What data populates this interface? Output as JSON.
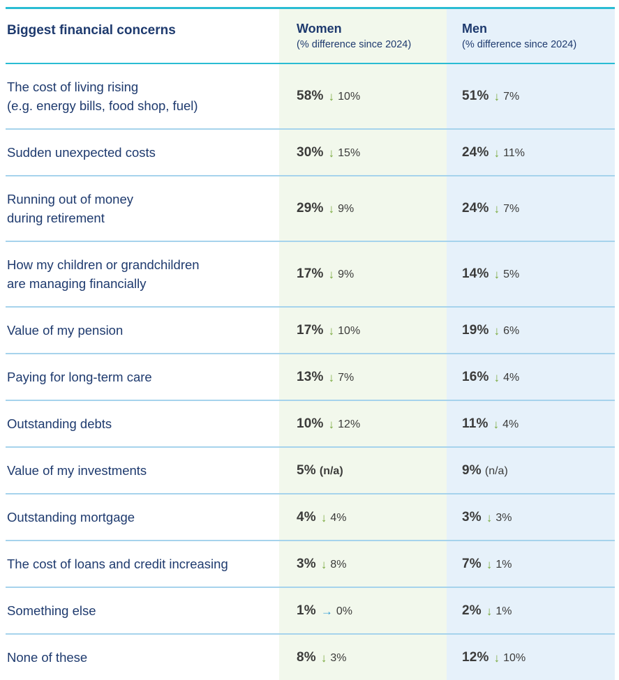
{
  "table": {
    "title": "Biggest financial concerns",
    "columns": {
      "women": {
        "name": "Women",
        "subtitle": "(% difference since 2024)"
      },
      "men": {
        "name": "Men",
        "subtitle": "(% difference since 2024)"
      }
    },
    "rows": [
      {
        "label": "The cost of living rising\n(e.g. energy bills, food shop, fuel)",
        "women": {
          "value": "58%",
          "arrow": "down",
          "diff": "10%"
        },
        "men": {
          "value": "51%",
          "arrow": "down",
          "diff": "7%"
        }
      },
      {
        "label": "Sudden unexpected costs",
        "women": {
          "value": "30%",
          "arrow": "down",
          "diff": "15%"
        },
        "men": {
          "value": "24%",
          "arrow": "down",
          "diff": "11%"
        }
      },
      {
        "label": "Running out of money\nduring retirement",
        "women": {
          "value": "29%",
          "arrow": "down",
          "diff": "9%"
        },
        "men": {
          "value": "24%",
          "arrow": "down",
          "diff": "7%"
        }
      },
      {
        "label": "How my children or grandchildren\nare managing financially",
        "women": {
          "value": "17%",
          "arrow": "down",
          "diff": "9%"
        },
        "men": {
          "value": "14%",
          "arrow": "down",
          "diff": "5%"
        }
      },
      {
        "label": "Value of my pension",
        "women": {
          "value": "17%",
          "arrow": "down",
          "diff": "10%"
        },
        "men": {
          "value": "19%",
          "arrow": "down",
          "diff": "6%"
        }
      },
      {
        "label": "Paying for long-term care",
        "women": {
          "value": "13%",
          "arrow": "down",
          "diff": "7%"
        },
        "men": {
          "value": "16%",
          "arrow": "down",
          "diff": "4%"
        }
      },
      {
        "label": "Outstanding debts",
        "women": {
          "value": "10%",
          "arrow": "down",
          "diff": "12%"
        },
        "men": {
          "value": "11%",
          "arrow": "down",
          "diff": "4%"
        }
      },
      {
        "label": "Value of my investments",
        "women": {
          "value": "5%",
          "arrow": null,
          "diff": "(n/a)",
          "diff_bold": true
        },
        "men": {
          "value": "9%",
          "arrow": null,
          "diff": "(n/a)"
        }
      },
      {
        "label": "Outstanding mortgage",
        "women": {
          "value": "4%",
          "arrow": "down",
          "diff": "4%"
        },
        "men": {
          "value": "3%",
          "arrow": "down",
          "diff": "3%"
        }
      },
      {
        "label": "The cost of loans and credit increasing",
        "women": {
          "value": "3%",
          "arrow": "down",
          "diff": "8%"
        },
        "men": {
          "value": "7%",
          "arrow": "down",
          "diff": "1%"
        }
      },
      {
        "label": "Something else",
        "women": {
          "value": "1%",
          "arrow": "same",
          "diff": "0%"
        },
        "men": {
          "value": "2%",
          "arrow": "down",
          "diff": "1%"
        }
      },
      {
        "label": "None of these",
        "women": {
          "value": "8%",
          "arrow": "down",
          "diff": "3%"
        },
        "men": {
          "value": "12%",
          "arrow": "down",
          "diff": "10%"
        }
      }
    ]
  },
  "icons": {
    "down_arrow": "↓",
    "right_arrow": "→"
  },
  "colors": {
    "navy_text": "#1E3A6E",
    "charcoal_text": "#3B3B3A",
    "teal_border": "#2ABCD3",
    "row_border": "#A6D3EC",
    "women_band_bg": "#F2F8EC",
    "men_band_bg": "#E6F1FA",
    "down_arrow_green": "#79A93E",
    "same_arrow_blue": "#2E9BD6"
  },
  "chart_data": {
    "type": "table",
    "title": "Biggest financial concerns",
    "categories": [
      "The cost of living rising (e.g. energy bills, food shop, fuel)",
      "Sudden unexpected costs",
      "Running out of money during retirement",
      "How my children or grandchildren are managing financially",
      "Value of my pension",
      "Paying for long-term care",
      "Outstanding debts",
      "Value of my investments",
      "Outstanding mortgage",
      "The cost of loans and credit increasing",
      "Something else",
      "None of these"
    ],
    "series": [
      {
        "name": "Women (%)",
        "values": [
          58,
          30,
          29,
          17,
          17,
          13,
          10,
          5,
          4,
          3,
          1,
          8
        ]
      },
      {
        "name": "Women difference since 2024 (%)",
        "values": [
          -10,
          -15,
          -9,
          -9,
          -10,
          -7,
          -12,
          null,
          -4,
          -8,
          0,
          -3
        ]
      },
      {
        "name": "Men (%)",
        "values": [
          51,
          24,
          24,
          14,
          19,
          16,
          11,
          9,
          3,
          7,
          2,
          12
        ]
      },
      {
        "name": "Men difference since 2024 (%)",
        "values": [
          -7,
          -11,
          -7,
          -5,
          -6,
          -4,
          -4,
          null,
          -3,
          -1,
          -1,
          -10
        ]
      }
    ]
  }
}
